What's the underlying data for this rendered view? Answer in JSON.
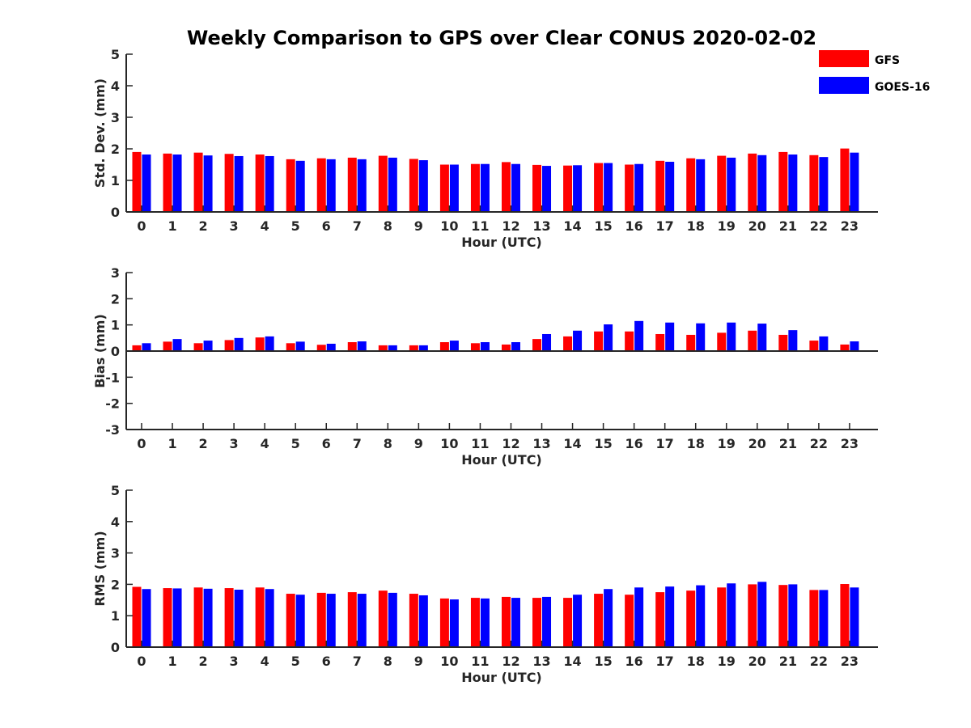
{
  "title": "Weekly Comparison to GPS over Clear CONUS 2020-02-02",
  "legend": {
    "placement": "top-right",
    "entries": [
      {
        "name": "GFS",
        "color": "#ff0000"
      },
      {
        "name": "GOES-16",
        "color": "#0000ff"
      }
    ]
  },
  "chart_data": [
    {
      "type": "bar",
      "title": "Weekly Comparison to GPS over Clear CONUS 2020-02-02",
      "xlabel": "Hour (UTC)",
      "ylabel": "Std. Dev. (mm)",
      "ylim": [
        0,
        5
      ],
      "yticks": [
        0,
        1,
        2,
        3,
        4,
        5
      ],
      "grid": false,
      "categories": [
        "0",
        "1",
        "2",
        "3",
        "4",
        "5",
        "6",
        "7",
        "8",
        "9",
        "10",
        "11",
        "12",
        "13",
        "14",
        "15",
        "16",
        "17",
        "18",
        "19",
        "20",
        "21",
        "22",
        "23"
      ],
      "series": [
        {
          "name": "GFS",
          "color": "#ff0000",
          "values": [
            1.9,
            1.85,
            1.88,
            1.84,
            1.82,
            1.67,
            1.7,
            1.72,
            1.78,
            1.68,
            1.5,
            1.52,
            1.58,
            1.49,
            1.47,
            1.55,
            1.5,
            1.62,
            1.7,
            1.78,
            1.85,
            1.9,
            1.8,
            2.01
          ]
        },
        {
          "name": "GOES-16",
          "color": "#0000ff",
          "values": [
            1.82,
            1.82,
            1.79,
            1.77,
            1.77,
            1.62,
            1.67,
            1.67,
            1.72,
            1.64,
            1.5,
            1.52,
            1.52,
            1.46,
            1.48,
            1.55,
            1.52,
            1.59,
            1.67,
            1.72,
            1.8,
            1.82,
            1.74,
            1.88
          ]
        }
      ]
    },
    {
      "type": "bar",
      "xlabel": "Hour (UTC)",
      "ylabel": "Bias (mm)",
      "ylim": [
        -3,
        3
      ],
      "yticks": [
        -3,
        -2,
        -1,
        0,
        1,
        2,
        3
      ],
      "grid": false,
      "categories": [
        "0",
        "1",
        "2",
        "3",
        "4",
        "5",
        "6",
        "7",
        "8",
        "9",
        "10",
        "11",
        "12",
        "13",
        "14",
        "15",
        "16",
        "17",
        "18",
        "19",
        "20",
        "21",
        "22",
        "23"
      ],
      "series": [
        {
          "name": "GFS",
          "color": "#ff0000",
          "values": [
            0.22,
            0.36,
            0.3,
            0.42,
            0.52,
            0.3,
            0.24,
            0.34,
            0.22,
            0.22,
            0.34,
            0.3,
            0.25,
            0.46,
            0.56,
            0.75,
            0.75,
            0.65,
            0.62,
            0.7,
            0.78,
            0.62,
            0.4,
            0.25
          ]
        },
        {
          "name": "GOES-16",
          "color": "#0000ff",
          "values": [
            0.3,
            0.46,
            0.4,
            0.5,
            0.56,
            0.36,
            0.28,
            0.37,
            0.22,
            0.22,
            0.4,
            0.34,
            0.34,
            0.65,
            0.78,
            1.02,
            1.15,
            1.09,
            1.06,
            1.09,
            1.05,
            0.8,
            0.56,
            0.37
          ]
        }
      ]
    },
    {
      "type": "bar",
      "xlabel": "Hour (UTC)",
      "ylabel": "RMS (mm)",
      "ylim": [
        0,
        5
      ],
      "yticks": [
        0,
        1,
        2,
        3,
        4,
        5
      ],
      "grid": false,
      "categories": [
        "0",
        "1",
        "2",
        "3",
        "4",
        "5",
        "6",
        "7",
        "8",
        "9",
        "10",
        "11",
        "12",
        "13",
        "14",
        "15",
        "16",
        "17",
        "18",
        "19",
        "20",
        "21",
        "22",
        "23"
      ],
      "series": [
        {
          "name": "GFS",
          "color": "#ff0000",
          "values": [
            1.92,
            1.88,
            1.9,
            1.88,
            1.9,
            1.7,
            1.73,
            1.75,
            1.8,
            1.7,
            1.55,
            1.57,
            1.6,
            1.57,
            1.57,
            1.7,
            1.67,
            1.75,
            1.8,
            1.9,
            2.0,
            1.98,
            1.82,
            2.01
          ]
        },
        {
          "name": "GOES-16",
          "color": "#0000ff",
          "values": [
            1.85,
            1.87,
            1.86,
            1.83,
            1.85,
            1.67,
            1.7,
            1.7,
            1.73,
            1.65,
            1.52,
            1.55,
            1.57,
            1.6,
            1.67,
            1.85,
            1.9,
            1.93,
            1.97,
            2.03,
            2.08,
            2.0,
            1.82,
            1.9
          ]
        }
      ]
    }
  ]
}
